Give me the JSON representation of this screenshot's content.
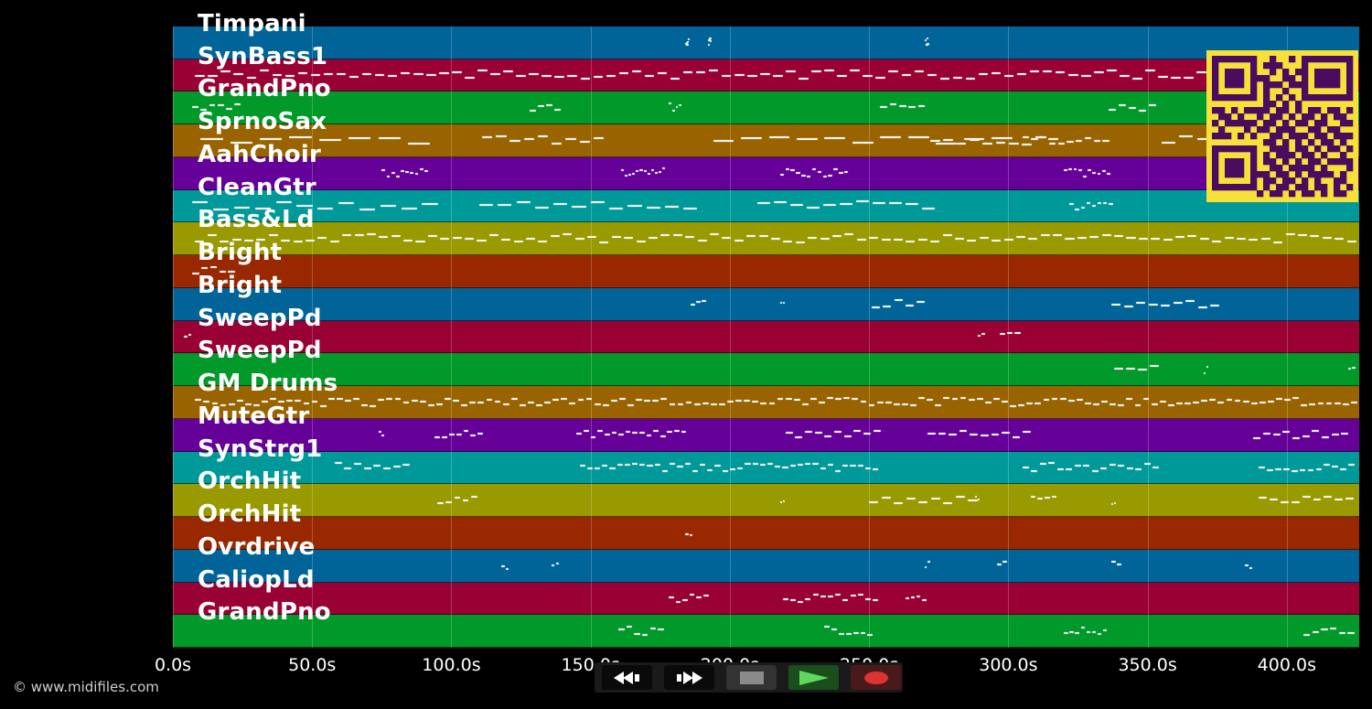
{
  "tracks": [
    {
      "name": "Timpani",
      "color": "#006499"
    },
    {
      "name": "SynBass1",
      "color": "#990033"
    },
    {
      "name": "GrandPno",
      "color": "#00992a"
    },
    {
      "name": "SprnoSax",
      "color": "#996400"
    },
    {
      "name": "AahChoir",
      "color": "#650099"
    },
    {
      "name": "CleanGtr",
      "color": "#009999"
    },
    {
      "name": "Bass&Ld",
      "color": "#999900"
    },
    {
      "name": "Bright",
      "color": "#992800"
    },
    {
      "name": "Bright",
      "color": "#006499"
    },
    {
      "name": "SweepPd",
      "color": "#990033"
    },
    {
      "name": "SweepPd",
      "color": "#00992a"
    },
    {
      "name": "GM Drums",
      "color": "#996400"
    },
    {
      "name": "MuteGtr",
      "color": "#650099"
    },
    {
      "name": "SynStrg1",
      "color": "#009999"
    },
    {
      "name": "OrchHit",
      "color": "#999900"
    },
    {
      "name": "OrchHit",
      "color": "#992800"
    },
    {
      "name": "Ovrdrive",
      "color": "#006499"
    },
    {
      "name": "CaliopLd",
      "color": "#990033"
    },
    {
      "name": "GrandPno",
      "color": "#00992a"
    }
  ],
  "timeline": {
    "max_seconds": 426,
    "ticks": [
      {
        "label": "0.0s",
        "value": 0
      },
      {
        "label": "50.0s",
        "value": 50
      },
      {
        "label": "100.0s",
        "value": 100
      },
      {
        "label": "150.0s",
        "value": 150
      },
      {
        "label": "200.0s",
        "value": 200
      },
      {
        "label": "250.0s",
        "value": 250
      },
      {
        "label": "300.0s",
        "value": 300
      },
      {
        "label": "350.0s",
        "value": 350
      },
      {
        "label": "400.0s",
        "value": 400
      }
    ]
  },
  "notes": [
    [
      [
        184,
        1,
        5
      ],
      [
        192,
        1,
        4
      ],
      [
        270,
        1,
        5
      ]
    ],
    [
      [
        8,
        415,
        90
      ]
    ],
    [
      [
        7,
        18,
        6
      ],
      [
        128,
        12,
        4
      ],
      [
        178,
        5,
        4
      ],
      [
        254,
        17,
        5
      ],
      [
        336,
        18,
        5
      ]
    ],
    [
      [
        10,
        85,
        8
      ],
      [
        111,
        45,
        9
      ],
      [
        194,
        110,
        11
      ],
      [
        272,
        47,
        10
      ],
      [
        305,
        32,
        10
      ],
      [
        355,
        45,
        7
      ]
    ],
    [
      [
        75,
        17,
        10
      ],
      [
        161,
        16,
        12
      ],
      [
        218,
        25,
        13
      ],
      [
        320,
        17,
        10
      ]
    ],
    [
      [
        7,
        90,
        12
      ],
      [
        110,
        80,
        12
      ],
      [
        210,
        65,
        11
      ],
      [
        322,
        16,
        8
      ]
    ],
    [
      [
        8,
        418,
        95
      ]
    ],
    [
      [
        7,
        16,
        5
      ]
    ],
    [
      [
        186,
        6,
        3
      ],
      [
        218,
        2,
        2
      ],
      [
        251,
        20,
        5
      ],
      [
        337,
        40,
        9
      ]
    ],
    [
      [
        4,
        3,
        2
      ],
      [
        289,
        3,
        2
      ],
      [
        297,
        8,
        3
      ]
    ],
    [
      [
        338,
        17,
        4
      ],
      [
        370,
        2,
        2
      ],
      [
        422,
        3,
        2
      ]
    ],
    [
      [
        8,
        418,
        140
      ]
    ],
    [
      [
        74,
        2,
        2
      ],
      [
        94,
        18,
        7
      ],
      [
        145,
        40,
        16
      ],
      [
        220,
        35,
        10
      ],
      [
        271,
        38,
        10
      ],
      [
        388,
        35,
        10
      ]
    ],
    [
      [
        58,
        28,
        8
      ],
      [
        146,
        108,
        40
      ],
      [
        305,
        50,
        16
      ],
      [
        390,
        35,
        12
      ]
    ],
    [
      [
        95,
        15,
        5
      ],
      [
        218,
        2,
        2
      ],
      [
        250,
        40,
        9
      ],
      [
        288,
        2,
        2
      ],
      [
        308,
        10,
        4
      ],
      [
        337,
        2,
        2
      ],
      [
        390,
        35,
        9
      ]
    ],
    [
      [
        184,
        3,
        2
      ]
    ],
    [
      [
        118,
        3,
        2
      ],
      [
        136,
        3,
        2
      ],
      [
        270,
        2,
        2
      ],
      [
        296,
        4,
        2
      ],
      [
        337,
        4,
        2
      ],
      [
        385,
        3,
        2
      ]
    ],
    [
      [
        178,
        15,
        6
      ],
      [
        219,
        35,
        13
      ],
      [
        263,
        8,
        4
      ]
    ],
    [
      [
        160,
        17,
        6
      ],
      [
        234,
        18,
        7
      ],
      [
        320,
        16,
        8
      ],
      [
        406,
        19,
        6
      ]
    ]
  ],
  "transport": {
    "rewind": "rewind-icon",
    "fast_forward": "fast-forward-icon",
    "stop": "stop-icon",
    "play": "play-icon",
    "record": "record-icon"
  },
  "copyright": "© www.midifiles.com",
  "qr": {
    "fg": "#4a0c5e",
    "bg": "#f7e03a",
    "modules": [
      "1111111001001011111111",
      "1000001011100010000001",
      "1011101001010110111101",
      "1011101110011010111101",
      "1011101011101110111101",
      "1000001010010010000001",
      "1111111010101011111111",
      "0000000011010100000000",
      "1101011110110101101101",
      "0110100101101011010110",
      "1011111011010110110011",
      "0100010110111001101100",
      "1110101001101110110111",
      "0000000011010101011010",
      "1111111001110110101101",
      "1000001010111011010010",
      "1011101011010101101111",
      "1011101001101111010001",
      "1011101110110101111010",
      "1000001011011010100110",
      "1111111010110110110101",
      "0000000101101011010110"
    ]
  }
}
